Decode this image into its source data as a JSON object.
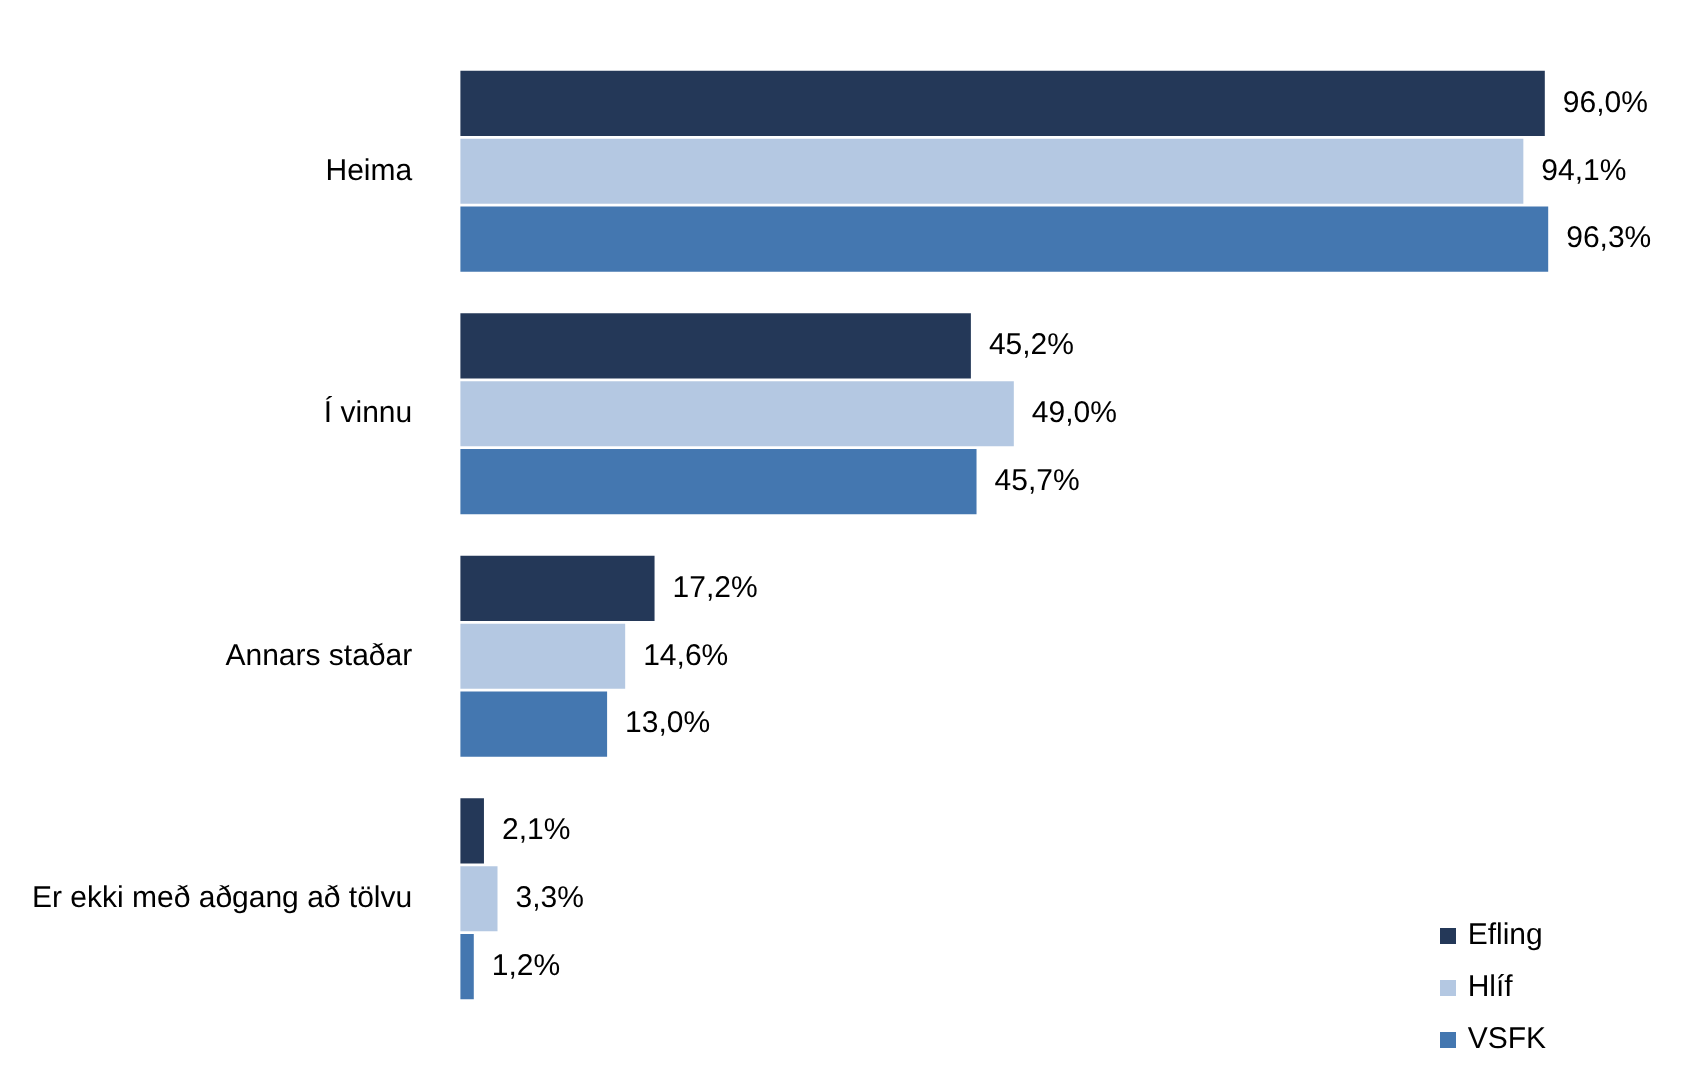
{
  "chart_data": {
    "type": "bar",
    "orientation": "horizontal",
    "categories": [
      "Heima",
      "Í vinnu",
      "Annars staðar",
      "Er ekki með aðgang að tölvu"
    ],
    "series": [
      {
        "name": "Efling",
        "color": "#243858",
        "values": [
          96.0,
          45.2,
          17.2,
          2.1
        ],
        "value_labels": [
          "96,0%",
          "45,2%",
          "17,2%",
          "2,1%"
        ]
      },
      {
        "name": "Hlíf",
        "color": "#b4c8e2",
        "values": [
          94.1,
          49.0,
          14.6,
          3.3
        ],
        "value_labels": [
          "94,1%",
          "49,0%",
          "14,6%",
          "3,3%"
        ]
      },
      {
        "name": "VSFK",
        "color": "#4477b0",
        "values": [
          96.3,
          45.7,
          13.0,
          1.2
        ],
        "value_labels": [
          "96,3%",
          "45,7%",
          "13,0%",
          "1,2%"
        ]
      }
    ],
    "legend": "bottom right",
    "tick_labels": "y"
  }
}
